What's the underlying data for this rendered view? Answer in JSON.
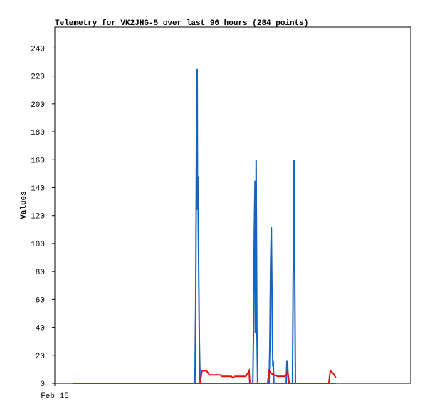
{
  "chart_data": {
    "type": "line",
    "title": "Telemetry for VK2JHG-5 over last 96 hours (284 points)",
    "y_label": "Values",
    "xlim": [
      0,
      96
    ],
    "xticks": [
      {
        "value": 0,
        "label": "Feb 15"
      }
    ],
    "ylim": [
      0,
      255
    ],
    "yticks": [
      0,
      20,
      40,
      60,
      80,
      100,
      120,
      140,
      160,
      180,
      200,
      220,
      240
    ],
    "grid": false,
    "series": [
      {
        "color": "#1565c0",
        "x": [
          5.0,
          37.8,
          38.0,
          38.2,
          38.4,
          38.5,
          38.6,
          38.8,
          39.0,
          39.2,
          53.4,
          53.6,
          53.8,
          54.0,
          54.1,
          54.3,
          54.5,
          54.7,
          57.8,
          58.0,
          58.2,
          58.4,
          58.6,
          58.8,
          58.9,
          59.1,
          62.4,
          62.6,
          62.8,
          63.0,
          64.1,
          64.3,
          64.5,
          64.7,
          64.9,
          75.8
        ],
        "values": [
          0,
          0,
          56,
          168,
          225,
          124,
          148,
          84,
          28,
          0,
          0,
          36,
          108,
          145,
          36,
          160,
          40,
          0,
          0,
          28,
          84,
          112,
          56,
          12,
          16,
          0,
          0,
          16,
          12,
          0,
          0,
          80,
          160,
          80,
          0,
          0
        ]
      },
      {
        "color": "#e01010",
        "x": [
          5.0,
          39.2,
          39.7,
          40.9,
          41.7,
          44.7,
          45.1,
          47.6,
          48.0,
          48.6,
          51.5,
          52.0,
          52.4,
          52.6,
          57.4,
          57.8,
          58.4,
          59.1,
          60.1,
          62.0,
          62.4,
          62.8,
          63.2,
          73.9,
          74.3,
          75.1,
          75.8
        ],
        "values": [
          0,
          0,
          9,
          9,
          6,
          6,
          5,
          5,
          4,
          5,
          5,
          7,
          9,
          0,
          0,
          9,
          7,
          6,
          5,
          5,
          6,
          9,
          0,
          0,
          9,
          7,
          4
        ]
      }
    ]
  }
}
